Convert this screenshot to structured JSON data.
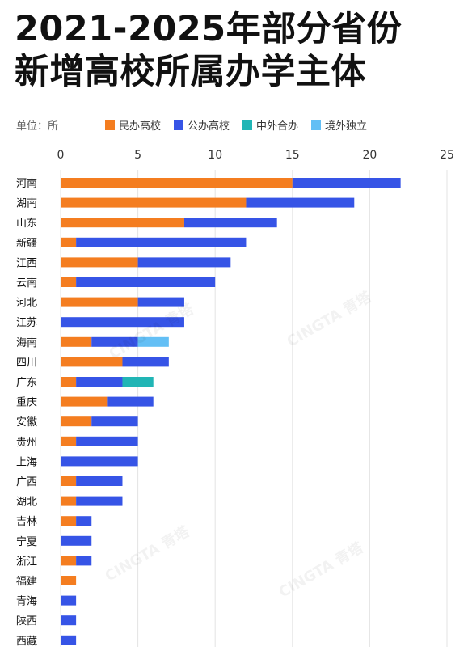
{
  "header": {
    "title_line1": "2021-2025年部分省份",
    "title_line2": "新增高校所属办学主体"
  },
  "unit_label": "单位：所",
  "colors": {
    "民办高校": "#f47d20",
    "公办高校": "#3654e6",
    "中外合办": "#21b5b5",
    "境外独立": "#63bff5",
    "grid": "#e3e3e3"
  },
  "chart_data": {
    "type": "bar",
    "orientation": "horizontal",
    "stacked": true,
    "categories": [
      "河南",
      "湖南",
      "山东",
      "新疆",
      "江西",
      "云南",
      "河北",
      "江苏",
      "海南",
      "四川",
      "广东",
      "重庆",
      "安徽",
      "贵州",
      "上海",
      "广西",
      "湖北",
      "吉林",
      "宁夏",
      "浙江",
      "福建",
      "青海",
      "陕西",
      "西藏"
    ],
    "series": [
      {
        "name": "民办高校",
        "values": [
          15,
          12,
          8,
          1,
          5,
          1,
          5,
          0,
          2,
          4,
          1,
          3,
          2,
          1,
          0,
          1,
          1,
          1,
          0,
          1,
          1,
          0,
          0,
          0
        ]
      },
      {
        "name": "公办高校",
        "values": [
          7,
          7,
          6,
          11,
          6,
          9,
          3,
          8,
          3,
          3,
          3,
          3,
          3,
          4,
          5,
          3,
          3,
          1,
          2,
          1,
          0,
          1,
          1,
          1
        ]
      },
      {
        "name": "中外合办",
        "values": [
          0,
          0,
          0,
          0,
          0,
          0,
          0,
          0,
          0,
          0,
          2,
          0,
          0,
          0,
          0,
          0,
          0,
          0,
          0,
          0,
          0,
          0,
          0,
          0
        ]
      },
      {
        "name": "境外独立",
        "values": [
          0,
          0,
          0,
          0,
          0,
          0,
          0,
          0,
          2,
          0,
          0,
          0,
          0,
          0,
          0,
          0,
          0,
          0,
          0,
          0,
          0,
          0,
          0,
          0
        ]
      }
    ],
    "xlim": [
      0,
      25
    ],
    "xticks": [
      0,
      5,
      10,
      15,
      20,
      25
    ],
    "x_axis_position": "top",
    "grid": true,
    "legend_position": "top"
  },
  "watermark": "CINGTA 青塔"
}
